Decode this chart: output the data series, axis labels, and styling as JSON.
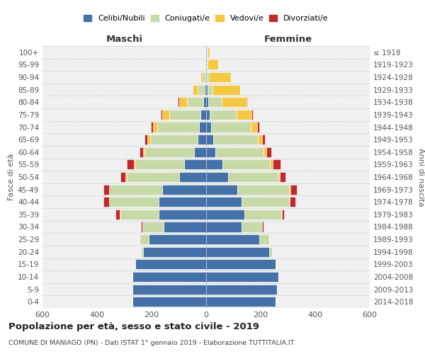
{
  "age_groups": [
    "0-4",
    "5-9",
    "10-14",
    "15-19",
    "20-24",
    "25-29",
    "30-34",
    "35-39",
    "40-44",
    "45-49",
    "50-54",
    "55-59",
    "60-64",
    "65-69",
    "70-74",
    "75-79",
    "80-84",
    "85-89",
    "90-94",
    "95-99",
    "100+"
  ],
  "birth_years": [
    "2014-2018",
    "2009-2013",
    "2004-2008",
    "1999-2003",
    "1994-1998",
    "1989-1993",
    "1984-1988",
    "1979-1983",
    "1974-1978",
    "1969-1973",
    "1964-1968",
    "1959-1963",
    "1954-1958",
    "1949-1953",
    "1944-1948",
    "1939-1943",
    "1934-1938",
    "1929-1933",
    "1924-1928",
    "1919-1923",
    "≤ 1918"
  ],
  "males": {
    "celibi": [
      270,
      270,
      270,
      260,
      230,
      210,
      155,
      175,
      175,
      160,
      100,
      80,
      45,
      30,
      25,
      20,
      10,
      5,
      3,
      2,
      2
    ],
    "coniugati": [
      0,
      0,
      0,
      2,
      10,
      30,
      80,
      140,
      180,
      195,
      190,
      180,
      180,
      175,
      155,
      115,
      60,
      25,
      10,
      4,
      2
    ],
    "vedovi": [
      0,
      0,
      0,
      0,
      0,
      0,
      0,
      2,
      2,
      2,
      5,
      5,
      5,
      10,
      15,
      25,
      30,
      20,
      8,
      3,
      0
    ],
    "divorziati": [
      0,
      0,
      0,
      0,
      0,
      2,
      5,
      15,
      20,
      20,
      20,
      25,
      15,
      10,
      8,
      5,
      3,
      0,
      0,
      0,
      0
    ]
  },
  "females": {
    "nubili": [
      255,
      260,
      265,
      255,
      230,
      195,
      130,
      140,
      130,
      115,
      80,
      60,
      35,
      25,
      18,
      12,
      8,
      4,
      2,
      2,
      2
    ],
    "coniugate": [
      0,
      0,
      0,
      3,
      12,
      35,
      75,
      135,
      175,
      190,
      185,
      175,
      175,
      165,
      145,
      100,
      50,
      20,
      8,
      3,
      2
    ],
    "vedove": [
      0,
      0,
      0,
      0,
      0,
      0,
      0,
      2,
      2,
      3,
      5,
      8,
      10,
      15,
      25,
      55,
      90,
      100,
      80,
      40,
      10
    ],
    "divorziate": [
      0,
      0,
      0,
      0,
      0,
      2,
      5,
      10,
      20,
      25,
      20,
      30,
      20,
      10,
      8,
      5,
      2,
      0,
      0,
      0,
      0
    ]
  },
  "colors": {
    "celibi_nubili": "#4472a8",
    "coniugati": "#c8d9a8",
    "vedovi": "#f5c842",
    "divorziati": "#c0282d"
  },
  "title": "Popolazione per età, sesso e stato civile - 2019",
  "subtitle": "COMUNE DI MANIAGO (PN) - Dati ISTAT 1° gennaio 2019 - Elaborazione TUTTITALIA.IT",
  "xlabel_left": "Maschi",
  "xlabel_right": "Femmine",
  "ylabel_left": "Fasce di età",
  "ylabel_right": "Anni di nascita",
  "xlim": 600,
  "bg_color": "#f0f0f0",
  "legend_labels": [
    "Celibi/Nubili",
    "Coniugati/e",
    "Vedovi/e",
    "Divorziati/e"
  ]
}
